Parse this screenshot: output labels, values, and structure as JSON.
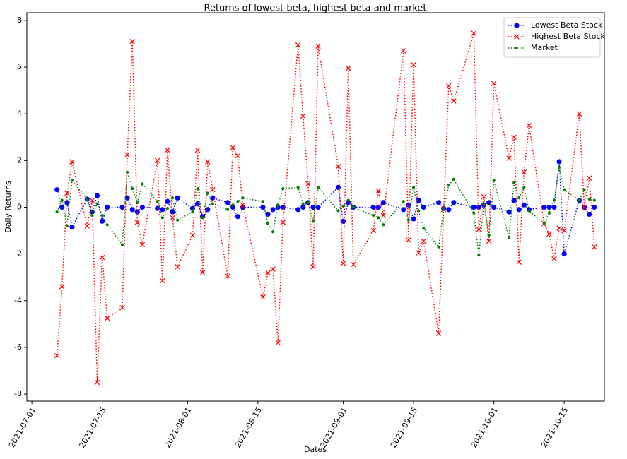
{
  "chart_data": {
    "type": "line",
    "title": "Returns of lowest beta, highest beta and market",
    "xlabel": "Dates",
    "ylabel": "Daily Returns",
    "x": [
      "2021-07-06",
      "2021-07-07",
      "2021-07-08",
      "2021-07-09",
      "2021-07-12",
      "2021-07-13",
      "2021-07-14",
      "2021-07-15",
      "2021-07-16",
      "2021-07-19",
      "2021-07-20",
      "2021-07-21",
      "2021-07-22",
      "2021-07-23",
      "2021-07-26",
      "2021-07-27",
      "2021-07-28",
      "2021-07-29",
      "2021-07-30",
      "2021-08-02",
      "2021-08-03",
      "2021-08-04",
      "2021-08-05",
      "2021-08-06",
      "2021-08-09",
      "2021-08-10",
      "2021-08-11",
      "2021-08-12",
      "2021-08-16",
      "2021-08-17",
      "2021-08-18",
      "2021-08-19",
      "2021-08-20",
      "2021-08-23",
      "2021-08-24",
      "2021-08-25",
      "2021-08-26",
      "2021-08-27",
      "2021-08-31",
      "2021-09-01",
      "2021-09-02",
      "2021-09-03",
      "2021-09-07",
      "2021-09-08",
      "2021-09-09",
      "2021-09-13",
      "2021-09-14",
      "2021-09-15",
      "2021-09-16",
      "2021-09-17",
      "2021-09-20",
      "2021-09-21",
      "2021-09-22",
      "2021-09-23",
      "2021-09-27",
      "2021-09-28",
      "2021-09-29",
      "2021-09-30",
      "2021-10-01",
      "2021-10-04",
      "2021-10-05",
      "2021-10-06",
      "2021-10-07",
      "2021-10-08",
      "2021-10-11",
      "2021-10-12",
      "2021-10-13",
      "2021-10-14",
      "2021-10-15",
      "2021-10-18",
      "2021-10-19",
      "2021-10-20",
      "2021-10-21"
    ],
    "series": [
      {
        "name": "Lowest Beta Stock",
        "color": "#0000ff",
        "marker": "o",
        "values": [
          0.75,
          0,
          0.2,
          -0.85,
          0.35,
          -0.2,
          0.5,
          -0.6,
          0,
          0,
          0.4,
          -0.1,
          -0.2,
          0,
          -0.05,
          -0.1,
          0.25,
          -0.2,
          0.4,
          -0.05,
          0.15,
          -0.4,
          -0.1,
          0.4,
          0.2,
          0,
          -0.4,
          0,
          0,
          -0.3,
          -0.1,
          0,
          0,
          -0.1,
          0,
          0.2,
          0,
          0,
          0.85,
          -0.6,
          0.2,
          0,
          0,
          0,
          0.2,
          -0.1,
          0.1,
          -0.5,
          0.3,
          0,
          0.2,
          -0.05,
          -0.1,
          0.2,
          0,
          0,
          0.1,
          0.2,
          0,
          -0.2,
          0.3,
          -0.1,
          0.1,
          -0.1,
          0,
          0,
          0,
          1.95,
          -2.0,
          0.3,
          0,
          -0.3,
          0
        ]
      },
      {
        "name": "Highest Beta Stock",
        "color": "#ff0000",
        "marker": "x",
        "values": [
          -6.35,
          -3.4,
          0.6,
          1.95,
          -0.8,
          0.3,
          -7.5,
          -2.15,
          -4.75,
          -4.3,
          2.25,
          7.1,
          -0.65,
          -1.6,
          2.0,
          -3.15,
          2.45,
          -0.45,
          -2.55,
          -1.2,
          2.45,
          -2.8,
          1.95,
          0.75,
          -2.95,
          2.55,
          2.2,
          0.1,
          -3.85,
          -2.8,
          -2.65,
          -5.8,
          -0.65,
          6.95,
          3.9,
          1.0,
          -2.55,
          6.9,
          1.75,
          -2.4,
          5.95,
          -2.45,
          -1.0,
          0.7,
          -0.35,
          6.7,
          -1.4,
          6.1,
          -1.95,
          -1.45,
          -5.4,
          -0.1,
          5.2,
          4.55,
          7.45,
          -0.95,
          0.45,
          -1.45,
          5.3,
          2.1,
          3.0,
          -2.35,
          1.5,
          3.5,
          -0.7,
          -1.15,
          -2.2,
          -0.9,
          -1.0,
          4.0,
          0,
          1.25,
          -1.7
        ]
      },
      {
        "name": "Market",
        "color": "#008000",
        "marker": ".",
        "values": [
          -0.2,
          0.3,
          -0.8,
          1.15,
          0.35,
          -0.35,
          0.15,
          -0.35,
          -0.75,
          -1.6,
          1.5,
          0.8,
          0.2,
          1.0,
          0.25,
          -0.45,
          -0.05,
          0.4,
          -0.55,
          -0.2,
          0.8,
          -0.45,
          0.6,
          0.15,
          -0.1,
          0.1,
          0.25,
          0.4,
          0.25,
          -0.7,
          -1.05,
          0.1,
          0.8,
          0.85,
          0.15,
          0.2,
          -0.6,
          0.85,
          -0.15,
          0.05,
          0.3,
          0,
          -0.35,
          -0.45,
          -0.75,
          0.25,
          -0.55,
          0.85,
          -0.15,
          -0.9,
          -1.7,
          -0.1,
          0.95,
          1.2,
          -0.25,
          -2.05,
          0.15,
          -1.2,
          1.15,
          -1.3,
          1.05,
          0.4,
          0.85,
          -0.15,
          -0.7,
          -0.25,
          0.3,
          1.7,
          0.75,
          0.3,
          0.75,
          0.35,
          0.3
        ]
      }
    ],
    "xlim": [
      "2021-06-30",
      "2021-10-23"
    ],
    "xticks": [
      "2021-07-01",
      "2021-07-15",
      "2021-08-01",
      "2021-08-15",
      "2021-09-01",
      "2021-09-15",
      "2021-10-01",
      "2021-10-15"
    ],
    "ylim": [
      -8.3,
      8.33
    ],
    "yticks": [
      -8,
      -6,
      -4,
      -2,
      0,
      2,
      4,
      6,
      8
    ],
    "legend": "upper right"
  }
}
